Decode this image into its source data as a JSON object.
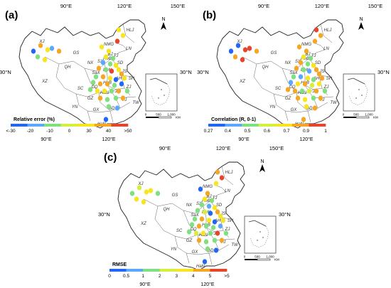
{
  "panels": [
    {
      "label": "(a)",
      "legend_title": "Relative error (%)",
      "legend_ticks": [
        "<-30",
        "-20",
        "-10",
        "0",
        "30",
        "40",
        ">50"
      ],
      "legend_colors": [
        "#2166f5",
        "#5aa9ff",
        "#7fe07f",
        "#d6ee3c",
        "#f7e51e",
        "#f5a623",
        "#e8432b"
      ],
      "lon_top": [
        "90°E",
        "120°E",
        "150°E"
      ],
      "lon_bottom": [
        "90°E",
        "120°E"
      ],
      "lat_left": "30°N",
      "lat_right": "30°N",
      "north": "N",
      "scale": {
        "z": "0",
        "m": "500",
        "e": "1,000",
        "u": "KM"
      }
    },
    {
      "label": "(b)",
      "legend_title": "Correlation (R, 0-1)",
      "legend_ticks": [
        "0.27",
        "0.4",
        "0.5",
        "0.6",
        "0.7",
        "0.9",
        "1"
      ],
      "legend_colors": [
        "#2166f5",
        "#5aa9ff",
        "#7fe07f",
        "#d6ee3c",
        "#f7e51e",
        "#f5a623",
        "#e8432b"
      ],
      "lon_top": [
        "90°E",
        "120°E",
        "150°E"
      ],
      "lon_bottom": [
        "90°E",
        "120°E"
      ],
      "lat_left": "30°N",
      "lat_right": "30°N",
      "north": "N",
      "scale": {
        "z": "0",
        "m": "500",
        "e": "1,000",
        "u": "KM"
      }
    },
    {
      "label": "(c)",
      "legend_title": "RMSE",
      "legend_ticks": [
        "0",
        "0.5",
        "1",
        "2",
        "3",
        "4",
        "5",
        ">5"
      ],
      "legend_colors": [
        "#2166f5",
        "#5aa9ff",
        "#7fe07f",
        "#d6ee3c",
        "#f7e51e",
        "#f5a623",
        "#e8432b"
      ],
      "lon_top": [
        "90°E",
        "120°E",
        "150°E"
      ],
      "lon_bottom": [
        "90°E",
        "120°E"
      ],
      "lat_left": "30°N",
      "lat_right": "30°N",
      "north": "N",
      "scale": {
        "z": "0",
        "m": "500",
        "e": "1,000",
        "u": "KM"
      }
    }
  ],
  "province_labels": [
    "XJ",
    "XZ",
    "QH",
    "GS",
    "NMG",
    "HLJ",
    "LN",
    "BJ",
    "TJ",
    "HeB",
    "SX",
    "SD",
    "HeN",
    "SaX",
    "NX",
    "JS",
    "AH",
    "SH",
    "HuB",
    "CQ",
    "SC",
    "ZJ",
    "JX",
    "HuN",
    "GZ",
    "YN",
    "GX",
    "GD",
    "FJ",
    "TW",
    "HaN"
  ],
  "site_colors": {
    "a": [
      "#f5a623",
      "#f7e51e",
      "#2166f5",
      "#7fe07f",
      "#f7e51e",
      "#5aa9ff",
      "#f5a623",
      "#f7e51e",
      "#f7e51e",
      "#e8432b",
      "#f7e51e",
      "#f7e51e",
      "#f7e51e",
      "#7fe07f",
      "#5aa9ff",
      "#7fe07f",
      "#f7e51e",
      "#f5a623",
      "#7fe07f",
      "#e8432b",
      "#f7e51e",
      "#f5a623",
      "#7fe07f",
      "#f5a623",
      "#f7e51e",
      "#2166f5",
      "#f7e51e",
      "#7fe07f",
      "#f5a623",
      "#f5a623",
      "#7fe07f",
      "#2166f5",
      "#7fe07f",
      "#f7e51e",
      "#f7e51e",
      "#7fe07f",
      "#f5a623",
      "#7fe07f",
      "#f5a623",
      "#7fe07f",
      "#7fe07f",
      "#f5a623",
      "#7fe07f",
      "#2166f5",
      "#5aa9ff"
    ],
    "b": [
      "#2166f5",
      "#e8432b",
      "#2166f5",
      "#f5a623",
      "#e8432b",
      "#e8432b",
      "#f5a623",
      "#e8432b",
      "#f5a623",
      "#f5a623",
      "#f5a623",
      "#f5a623",
      "#f7e51e",
      "#7fe07f",
      "#f5a623",
      "#7fe07f",
      "#f7e51e",
      "#f5a623",
      "#7fe07f",
      "#5aa9ff",
      "#f5a623",
      "#f5a623",
      "#7fe07f",
      "#5aa9ff",
      "#f7e51e",
      "#7fe07f",
      "#f5a623",
      "#5aa9ff",
      "#f7e51e",
      "#f5a623",
      "#d6ee3c",
      "#f7e51e",
      "#f5a623",
      "#f5a623",
      "#7fe07f",
      "#d6ee3c",
      "#f5a623",
      "#7fe07f",
      "#f5a623",
      "#f7e51e",
      "#7fe07f",
      "#f5a623",
      "#f7e51e",
      "#f5a623",
      "#f5a623"
    ],
    "c": [
      "#d6ee3c",
      "#f7e51e",
      "#7fe07f",
      "#f7e51e",
      "#f7e51e",
      "#f7e51e",
      "#7fe07f",
      "#f5a623",
      "#e8432b",
      "#f7e51e",
      "#2166f5",
      "#f5a623",
      "#f7e51e",
      "#7fe07f",
      "#7fe07f",
      "#5aa9ff",
      "#f7e51e",
      "#7fe07f",
      "#d6ee3c",
      "#2166f5",
      "#f5a623",
      "#f7e51e",
      "#7fe07f",
      "#f5a623",
      "#f7e51e",
      "#2166f5",
      "#f7e51e",
      "#7fe07f",
      "#f5a623",
      "#7fe07f",
      "#7fe07f",
      "#5aa9ff",
      "#7fe07f",
      "#d6ee3c",
      "#f7e51e",
      "#7fe07f",
      "#e8432b",
      "#7fe07f",
      "#f5a623",
      "#7fe07f",
      "#7fe07f",
      "#f5a623",
      "#7fe07f",
      "#2166f5",
      "#2166f5"
    ]
  }
}
